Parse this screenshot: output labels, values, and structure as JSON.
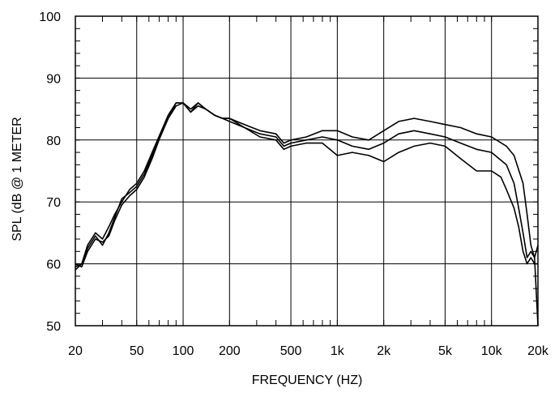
{
  "chart_data": {
    "type": "line",
    "title": "",
    "xlabel": "FREQUENCY  (HZ)",
    "ylabel": "SPL (dB @ 1 METER",
    "x_scale": "log",
    "xlim": [
      20,
      20000
    ],
    "ylim": [
      50,
      100
    ],
    "grid": true,
    "legend": "none",
    "line_color": "#000000",
    "x_ticks": [
      {
        "value": 20,
        "label": "20"
      },
      {
        "value": 50,
        "label": "50"
      },
      {
        "value": 100,
        "label": "100"
      },
      {
        "value": 200,
        "label": "200"
      },
      {
        "value": 500,
        "label": "500"
      },
      {
        "value": 1000,
        "label": "1k"
      },
      {
        "value": 2000,
        "label": "2k"
      },
      {
        "value": 5000,
        "label": "5k"
      },
      {
        "value": 10000,
        "label": "10k"
      },
      {
        "value": 20000,
        "label": "20k"
      }
    ],
    "y_ticks": [
      {
        "value": 50,
        "label": "50"
      },
      {
        "value": 60,
        "label": "60"
      },
      {
        "value": 70,
        "label": "70"
      },
      {
        "value": 80,
        "label": "80"
      },
      {
        "value": 90,
        "label": "90"
      },
      {
        "value": 100,
        "label": "100"
      }
    ],
    "series": [
      {
        "x": [
          20,
          22,
          24,
          27,
          30,
          33,
          36,
          40,
          45,
          50,
          56,
          63,
          71,
          80,
          90,
          100,
          112,
          125,
          140,
          160,
          180,
          200,
          250,
          315,
          400,
          450,
          500,
          630,
          800,
          1000,
          1250,
          1600,
          2000,
          2500,
          3150,
          4000,
          5000,
          6300,
          8000,
          10000,
          12500,
          14000,
          16000,
          17000,
          18000,
          19000,
          20000
        ],
        "y": [
          59,
          60,
          63,
          65,
          64,
          66,
          68,
          70,
          72,
          73,
          75,
          78,
          81,
          84,
          86,
          86,
          85,
          86,
          85,
          84,
          83.5,
          83.5,
          82.5,
          81.5,
          81,
          79.5,
          80,
          80.5,
          81.5,
          81.5,
          80.5,
          80,
          81.5,
          83,
          83.5,
          83,
          82.5,
          82,
          81,
          80.5,
          79,
          77.5,
          73,
          68,
          63,
          61,
          50
        ]
      },
      {
        "x": [
          20,
          22,
          24,
          27,
          30,
          33,
          36,
          40,
          45,
          50,
          56,
          63,
          71,
          80,
          90,
          100,
          112,
          125,
          140,
          160,
          180,
          200,
          250,
          315,
          400,
          450,
          500,
          630,
          800,
          1000,
          1250,
          1600,
          2000,
          2500,
          3150,
          4000,
          5000,
          6300,
          8000,
          10000,
          12500,
          14000,
          15000,
          16000,
          17000,
          18000,
          19000,
          20000
        ],
        "y": [
          59.5,
          60,
          62.5,
          64.5,
          63,
          65,
          67.5,
          70.5,
          71.5,
          72.5,
          74.5,
          77.5,
          80.5,
          83.5,
          86,
          86,
          84.5,
          86,
          85,
          84,
          83.5,
          83,
          82,
          81,
          80.5,
          79,
          79.5,
          80,
          80.5,
          80,
          79,
          78.5,
          79.5,
          81,
          81.5,
          81,
          80.5,
          79.5,
          78.5,
          78,
          76,
          73,
          69,
          65,
          61,
          62,
          61,
          63
        ]
      },
      {
        "x": [
          20,
          22,
          24,
          27,
          30,
          33,
          36,
          40,
          45,
          50,
          56,
          63,
          71,
          80,
          90,
          100,
          112,
          125,
          140,
          160,
          180,
          200,
          250,
          315,
          400,
          450,
          500,
          630,
          800,
          1000,
          1250,
          1600,
          2000,
          2500,
          3150,
          4000,
          5000,
          6300,
          8000,
          10000,
          11500,
          12500,
          14000,
          15000,
          16000,
          17000,
          18000,
          19000,
          20000
        ],
        "y": [
          60,
          59.5,
          62,
          64,
          63.5,
          64.5,
          67,
          69.5,
          71,
          72,
          74,
          77,
          80.5,
          83.5,
          85.5,
          86,
          84.5,
          85.5,
          85,
          84,
          83.5,
          83.5,
          82,
          80.5,
          80,
          78.5,
          79,
          79.5,
          79.5,
          77.5,
          78,
          77.5,
          76.5,
          78,
          79,
          79.5,
          79,
          77,
          75,
          75,
          74,
          72,
          69,
          66,
          62,
          60,
          61,
          60,
          60
        ]
      }
    ]
  }
}
